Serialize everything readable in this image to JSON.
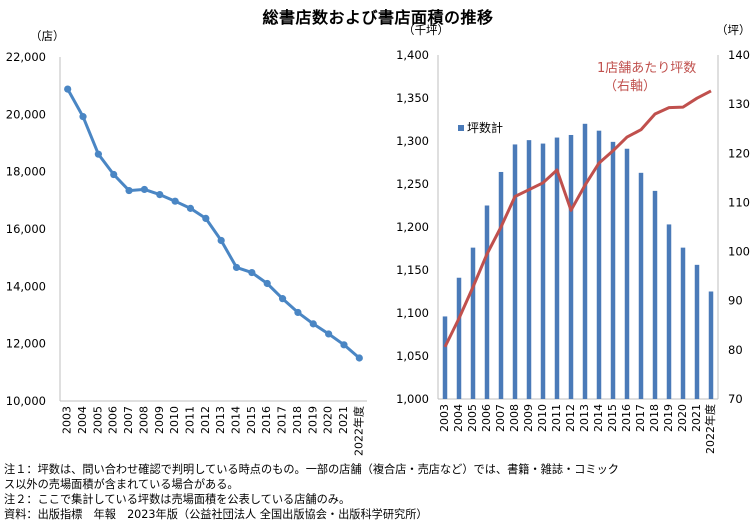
{
  "title": "総書店数および書店面積の推移",
  "left_chart": {
    "unit_label": "（店）",
    "y_ticks": [
      "22,000",
      "20,000",
      "18,000",
      "16,000",
      "14,000",
      "12,000",
      "10,000"
    ],
    "last_year_suffix": "年度"
  },
  "right_chart": {
    "left_unit_label": "（千坪）",
    "right_unit_label": "（坪）",
    "left_y_ticks": [
      "1,400",
      "1,350",
      "1,300",
      "1,250",
      "1,200",
      "1,150",
      "1,100",
      "1,050",
      "1,000"
    ],
    "right_y_ticks": [
      "140",
      "130",
      "120",
      "110",
      "100",
      "90",
      "80",
      "70"
    ],
    "legend_bar": "坪数計",
    "line_annotation_1": "1店舗あたり坪数",
    "line_annotation_2": "（右軸）"
  },
  "notes": {
    "note1_line1": "注１：坪数は、問い合わせ確認で判明している時点のもの。一部の店舗（複合店・売店など）では、書籍・雑誌・コミック",
    "note1_line2": "ス以外の売場面積が含まれている場合がある。",
    "note2": "注２：ここで集計している坪数は売場面積を公表している店舗のみ。",
    "source": "資料：出版指標　年報　2023年版（公益社団法人 全国出版協会・出版科学研究所）"
  },
  "colors": {
    "stores_line": "#4a86c4",
    "bars": "#4a7ab8",
    "per_store_line": "#c0504d",
    "annotation": "#c0504d"
  },
  "chart_data": [
    {
      "type": "line",
      "title": "",
      "xlabel": "",
      "ylabel": "（店）",
      "ylim": [
        10000,
        22000
      ],
      "x": [
        "2003",
        "2004",
        "2005",
        "2006",
        "2007",
        "2008",
        "2009",
        "2010",
        "2011",
        "2012",
        "2013",
        "2014",
        "2015",
        "2016",
        "2017",
        "2018",
        "2019",
        "2020",
        "2021",
        "2022年度"
      ],
      "series": [
        {
          "name": "",
          "values": [
            20880,
            19920,
            18610,
            17900,
            17340,
            17380,
            17200,
            16970,
            16720,
            16370,
            15600,
            14660,
            14480,
            14100,
            13570,
            13090,
            12690,
            12340,
            11960,
            11500
          ]
        }
      ],
      "grid": false,
      "markers": true
    },
    {
      "type": "bar",
      "title": "",
      "xlabel": "",
      "ylabel": "（千坪）",
      "ylim": [
        1000,
        1400
      ],
      "y2label": "（坪）",
      "y2lim": [
        70,
        140
      ],
      "categories": [
        "2003",
        "2004",
        "2005",
        "2006",
        "2007",
        "2008",
        "2009",
        "2010",
        "2011",
        "2012",
        "2013",
        "2014",
        "2015",
        "2016",
        "2017",
        "2018",
        "2019",
        "2020",
        "2021",
        "2022年度"
      ],
      "series": [
        {
          "name": "坪数計",
          "axis": "left",
          "type": "bar",
          "values": [
            1096,
            1141,
            1176,
            1225,
            1264,
            1296,
            1301,
            1297,
            1304,
            1307,
            1320,
            1312,
            1299,
            1291,
            1263,
            1242,
            1203,
            1176,
            1156,
            1125
          ]
        },
        {
          "name": "1店舗あたり坪数",
          "axis": "right",
          "type": "line",
          "values": [
            80.6,
            86.4,
            92.8,
            99.5,
            105.0,
            111.2,
            112.6,
            114.0,
            116.6,
            108.4,
            113.5,
            118.0,
            120.5,
            123.3,
            124.8,
            128.0,
            129.3,
            129.4,
            131.2,
            132.7
          ]
        }
      ],
      "legend": "top-left",
      "grid": false
    }
  ]
}
